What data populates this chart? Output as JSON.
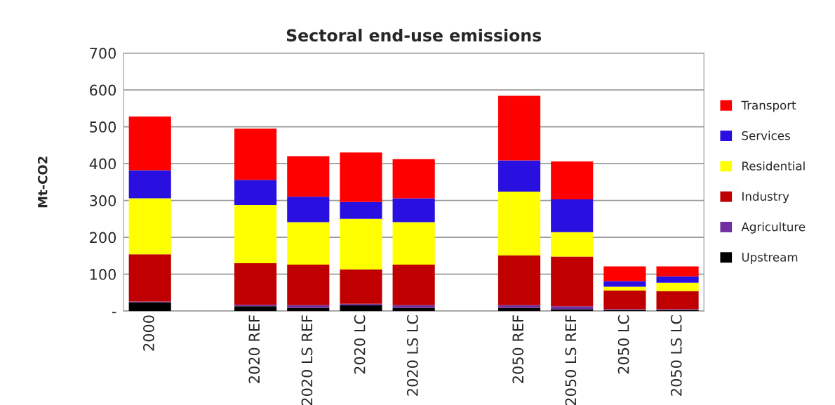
{
  "chart_data": {
    "type": "bar",
    "title": "Sectoral end-use emissions",
    "ylabel": "Mt-CO2",
    "stacked": true,
    "categories": [
      "2000",
      null,
      "2020 REF",
      "2020 LS REF",
      "2020 LC",
      "2020 LS LC",
      null,
      "2050 REF",
      "2050 LS REF",
      "2050 LC",
      "2050 LS LC"
    ],
    "series": [
      {
        "name": "Upstream",
        "color": "#000000",
        "values": [
          24,
          null,
          13,
          9,
          16,
          9,
          null,
          9,
          5,
          3,
          3
        ]
      },
      {
        "name": "Agriculture",
        "color": "#7030a0",
        "values": [
          2,
          null,
          4,
          7,
          4,
          7,
          null,
          7,
          8,
          2,
          2
        ]
      },
      {
        "name": "Industry",
        "color": "#c00000",
        "values": [
          128,
          null,
          113,
          110,
          93,
          110,
          null,
          135,
          135,
          51,
          49
        ]
      },
      {
        "name": "Residential",
        "color": "#ffff00",
        "values": [
          152,
          null,
          158,
          115,
          137,
          115,
          null,
          173,
          66,
          10,
          23
        ]
      },
      {
        "name": "Services",
        "color": "#2a10e0",
        "values": [
          76,
          null,
          68,
          69,
          46,
          65,
          null,
          85,
          89,
          15,
          17
        ]
      },
      {
        "name": "Transport",
        "color": "#ff0000",
        "values": [
          146,
          null,
          139,
          110,
          134,
          106,
          null,
          175,
          103,
          40,
          27
        ]
      }
    ],
    "ylim": [
      0,
      700
    ],
    "yticks": [
      {
        "value": 0,
        "label": "-"
      },
      100,
      200,
      300,
      400,
      500,
      600,
      700
    ],
    "grid": "y",
    "legend": "right"
  }
}
